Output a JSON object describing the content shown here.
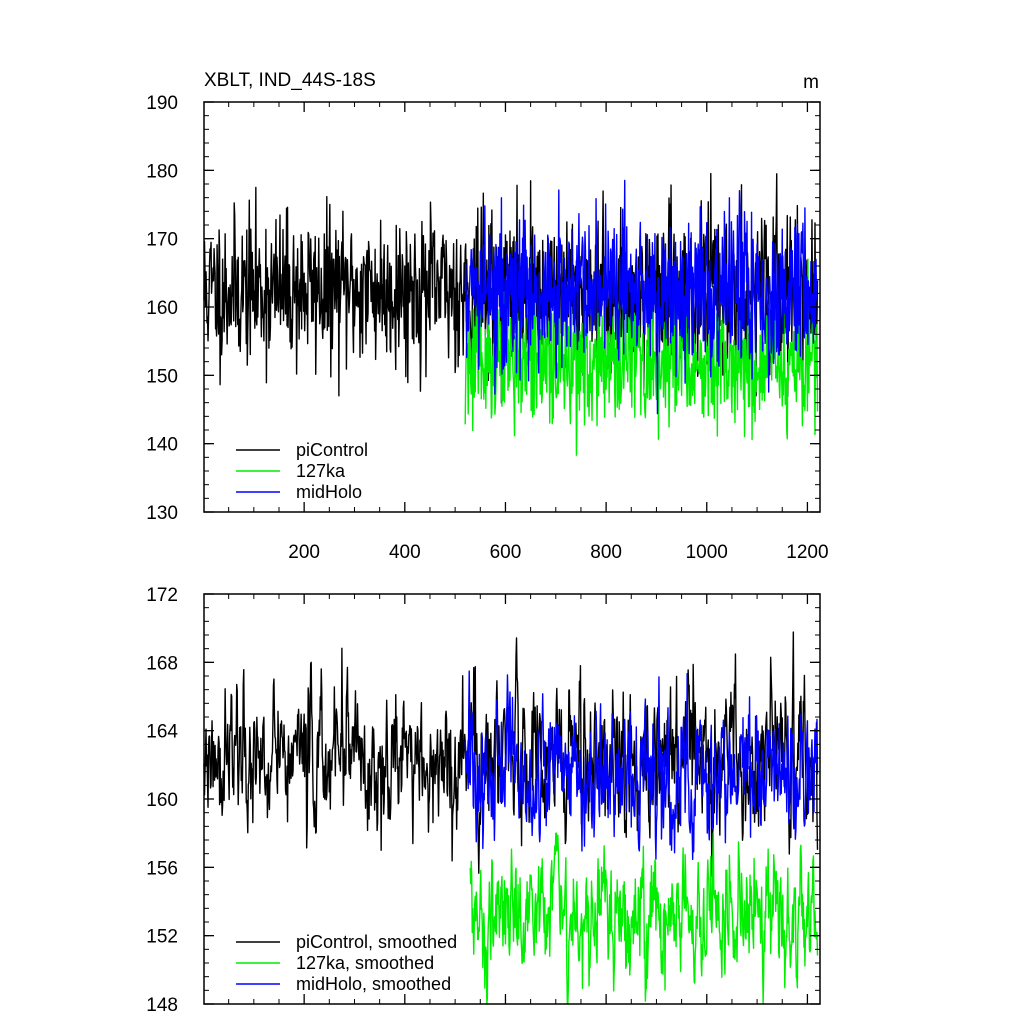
{
  "chart_data": [
    {
      "type": "line",
      "title": "XBLT, IND_44S-18S",
      "units_label": "m",
      "xlabel": "",
      "ylabel": "",
      "xlim": [
        1,
        1225
      ],
      "ylim": [
        130,
        190
      ],
      "x_ticks": [
        200,
        400,
        600,
        800,
        1000,
        1200
      ],
      "x_tick_labels": [
        "200",
        "400",
        "600",
        "800",
        "1000",
        "1200"
      ],
      "y_ticks": [
        130,
        140,
        150,
        160,
        170,
        180,
        190
      ],
      "y_tick_labels": [
        "130",
        "140",
        "150",
        "160",
        "170",
        "180",
        "190"
      ],
      "grid": false,
      "legend_position": "bottom-left",
      "series": [
        {
          "name": "piControl",
          "color": "#000000",
          "x_range": [
            1,
            1220
          ],
          "mean": 162.5,
          "std": 5.5,
          "min": 145,
          "max": 183
        },
        {
          "name": "127ka",
          "color": "#00ee00",
          "x_range": [
            520,
            1220
          ],
          "mean": 152,
          "std": 4.5,
          "min": 138,
          "max": 167
        },
        {
          "name": "midHolo",
          "color": "#0000ff",
          "x_range": [
            520,
            1220
          ],
          "mean": 162,
          "std": 5.5,
          "min": 144,
          "max": 181
        }
      ]
    },
    {
      "type": "line",
      "title": "",
      "xlabel": "",
      "ylabel": "",
      "xlim": [
        1,
        1225
      ],
      "ylim": [
        148,
        172
      ],
      "y_ticks": [
        148,
        152,
        156,
        160,
        164,
        168,
        172
      ],
      "y_tick_labels": [
        "148",
        "152",
        "156",
        "160",
        "164",
        "168",
        "172"
      ],
      "grid": false,
      "legend_position": "bottom-left",
      "series": [
        {
          "name": "piControl, smoothed",
          "color": "#000000",
          "x_range": [
            1,
            1220
          ],
          "mean": 162.3,
          "std": 2.1,
          "min": 155.5,
          "max": 170
        },
        {
          "name": "127ka, smoothed",
          "color": "#00ee00",
          "x_range": [
            530,
            1220
          ],
          "mean": 153,
          "std": 1.8,
          "min": 148,
          "max": 158
        },
        {
          "name": "midHolo, smoothed",
          "color": "#0000ff",
          "x_range": [
            520,
            1220
          ],
          "mean": 161.5,
          "std": 2.0,
          "min": 156,
          "max": 168
        }
      ]
    }
  ]
}
